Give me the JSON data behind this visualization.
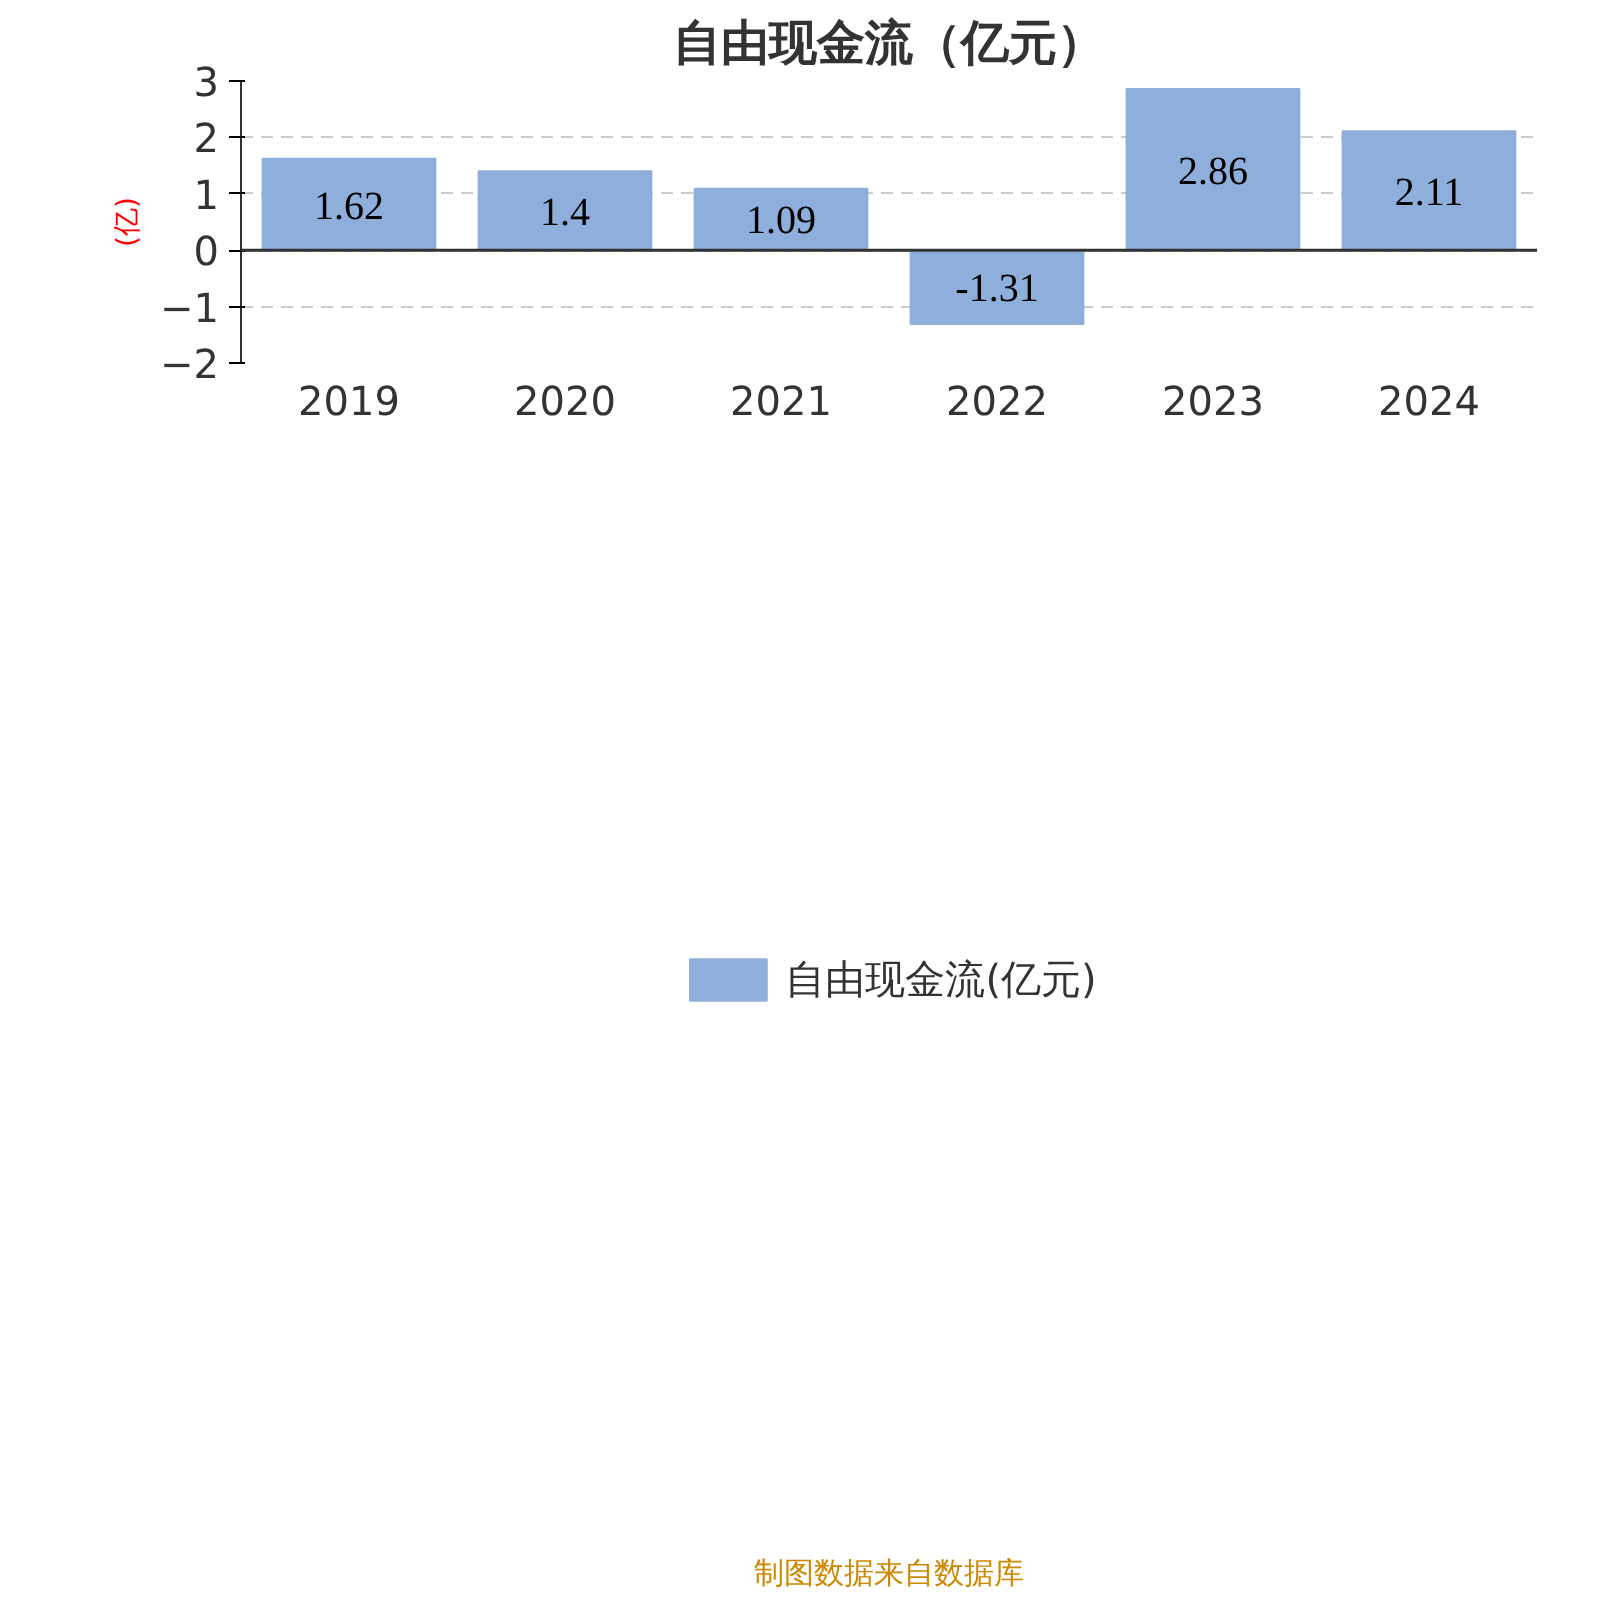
{
  "chart_data": {
    "type": "bar",
    "title": "自由现金流（亿元）",
    "ylabel": "(亿)",
    "categories": [
      "2019",
      "2020",
      "2021",
      "2022",
      "2023",
      "2024"
    ],
    "series": [
      {
        "name": "自由现金流(亿元)",
        "color": "#8eaedb",
        "values": [
          1.62,
          1.4,
          1.09,
          -1.31,
          2.86,
          2.11
        ]
      }
    ],
    "ylim": [
      -2,
      3
    ],
    "yticks": [
      -2,
      -1,
      0,
      1,
      2,
      3
    ],
    "grid": "y",
    "legend": "bottom",
    "data_labels": true,
    "annotations": [
      "制图数据来自数据库"
    ]
  }
}
